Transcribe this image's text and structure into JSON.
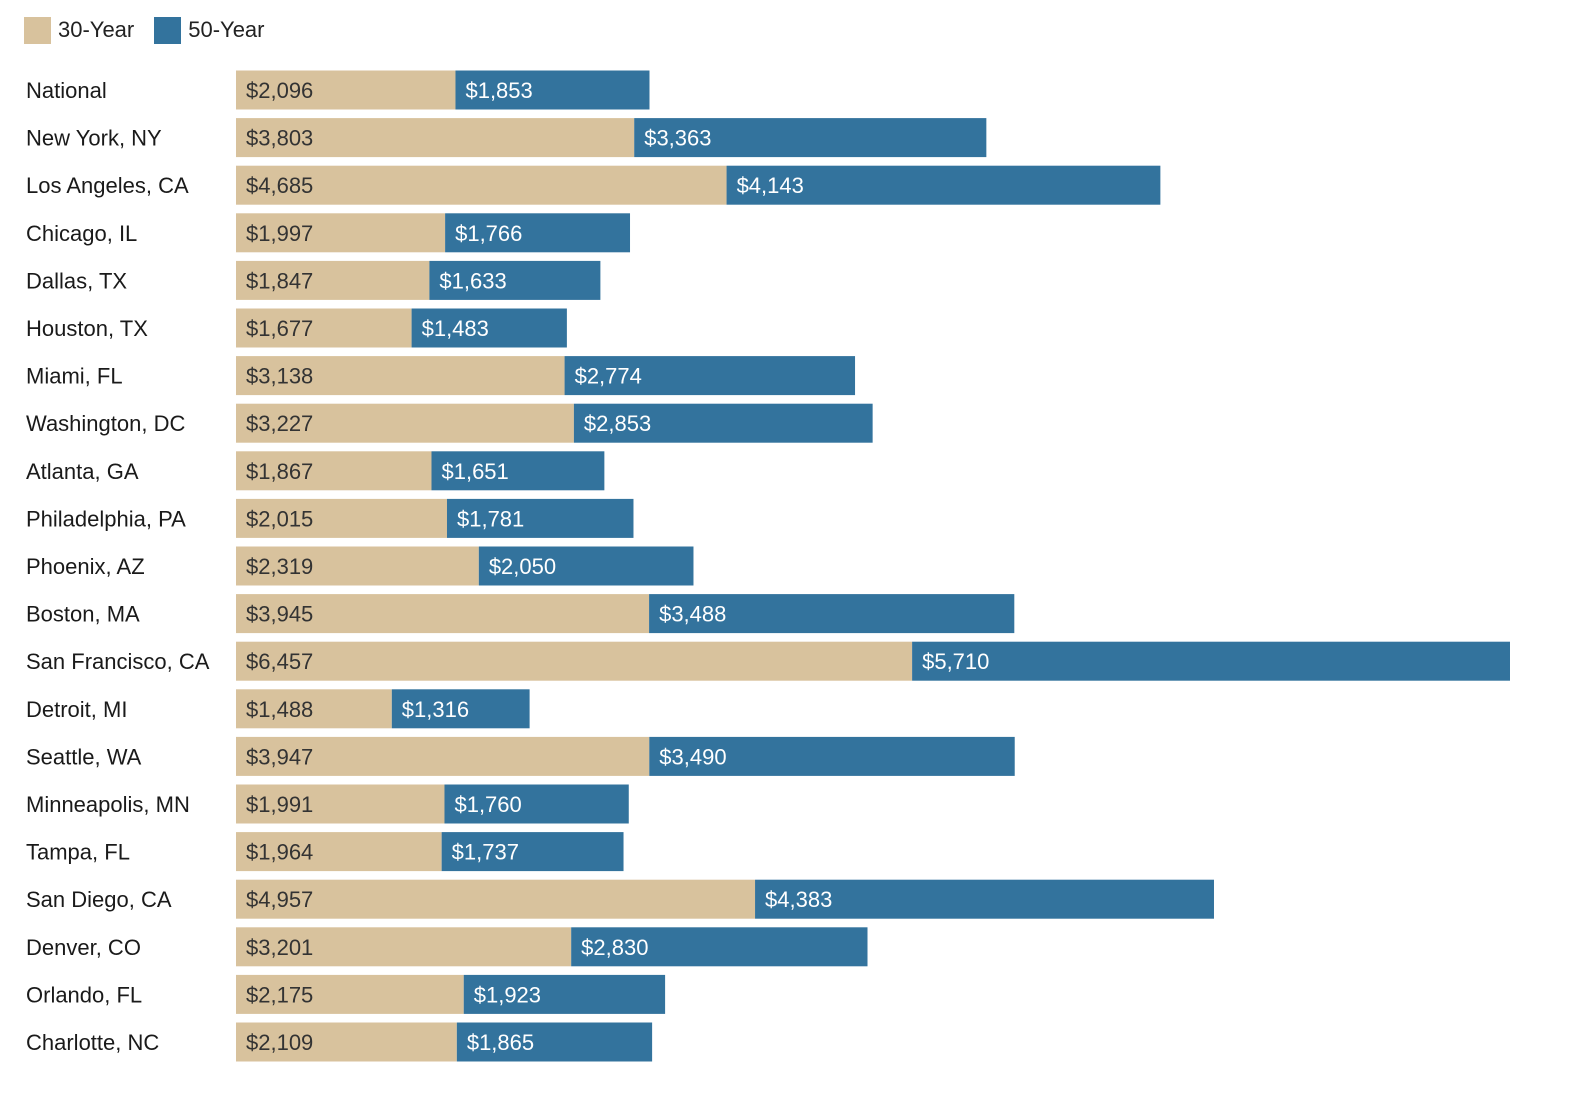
{
  "chart_data": {
    "type": "bar",
    "orientation": "horizontal",
    "stacked": true,
    "title": "",
    "xlabel": "",
    "ylabel": "",
    "grid": false,
    "legend_position": "top-left",
    "value_prefix": "$",
    "categories": [
      "National",
      "New York, NY",
      "Los Angeles, CA",
      "Chicago, IL",
      "Dallas, TX",
      "Houston, TX",
      "Miami, FL",
      "Washington, DC",
      "Atlanta, GA",
      "Philadelphia, PA",
      "Phoenix, AZ",
      "Boston, MA",
      "San Francisco, CA",
      "Detroit, MI",
      "Seattle, WA",
      "Minneapolis, MN",
      "Tampa, FL",
      "San Diego, CA",
      "Denver, CO",
      "Orlando, FL",
      "Charlotte, NC"
    ],
    "series": [
      {
        "name": "30-Year",
        "color": "#D8C29D",
        "label_color": "#333333",
        "values": [
          2096,
          3803,
          4685,
          1997,
          1847,
          1677,
          3138,
          3227,
          1867,
          2015,
          2319,
          3945,
          6457,
          1488,
          3947,
          1991,
          1964,
          4957,
          3201,
          2175,
          2109
        ]
      },
      {
        "name": "50-Year",
        "color": "#33739D",
        "label_color": "#ffffff",
        "values": [
          1853,
          3363,
          4143,
          1766,
          1633,
          1483,
          2774,
          2853,
          1651,
          1781,
          2050,
          3488,
          5710,
          1316,
          3490,
          1760,
          1737,
          4383,
          2830,
          1923,
          1865
        ]
      }
    ],
    "xlim": [
      0,
      12200
    ]
  }
}
